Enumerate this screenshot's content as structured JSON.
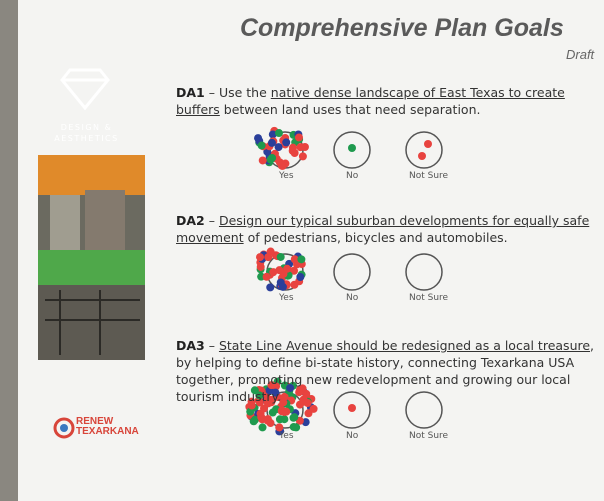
{
  "header": {
    "title": "Comprehensive Plan Goals",
    "badge": "Draft"
  },
  "sidebar": {
    "category": "DESIGN & AESTHETICS",
    "logo": "RENEW TEXARKANA"
  },
  "items": [
    {
      "code": "DA1",
      "before": " – Use the ",
      "underlined": "native dense landscape of East Texas to create buffers",
      "after": " between land uses that need separation.",
      "options": [
        "Yes",
        "No",
        "Not Sure"
      ]
    },
    {
      "code": "DA2",
      "before": " – ",
      "underlined": "Design our typical suburban developments for equally safe movement",
      "after": " of pedestrians, bicycles and automobiles.",
      "options": [
        "Yes",
        "No",
        "Not Sure"
      ]
    },
    {
      "code": "DA3",
      "before": " – ",
      "underlined": "State Line Avenue should be redesigned as a local treasure",
      "after": ", by helping to define bi-state history, connecting Texarkana USA together, promoting new redevelopment and growing our local tourism industry.",
      "options": [
        "Yes",
        "No",
        "Not Sure"
      ]
    }
  ]
}
